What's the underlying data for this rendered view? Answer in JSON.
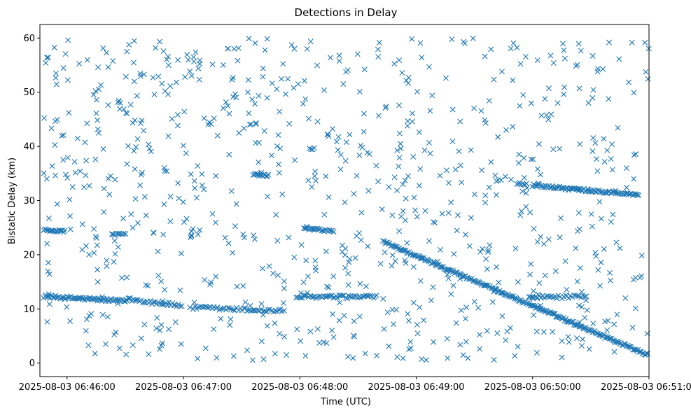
{
  "chart_data": {
    "type": "scatter",
    "title": "Detections in Delay",
    "xlabel": "Time (UTC)",
    "ylabel": "Bistatic Delay (km)",
    "marker": "x",
    "color": "#1f77b4",
    "xlim_seconds": [
      -14,
      300
    ],
    "ylim": [
      -2.5,
      62.5
    ],
    "x_ticks": [
      {
        "sec": 0,
        "label": "2025-08-03 06:46:00"
      },
      {
        "sec": 60,
        "label": "2025-08-03 06:47:00"
      },
      {
        "sec": 120,
        "label": "2025-08-03 06:48:00"
      },
      {
        "sec": 180,
        "label": "2025-08-03 06:49:00"
      },
      {
        "sec": 240,
        "label": "2025-08-03 06:50:00"
      },
      {
        "sec": 300,
        "label": "2025-08-03 06:51:00"
      }
    ],
    "y_ticks": [
      0,
      10,
      20,
      30,
      40,
      50,
      60
    ],
    "tracks": [
      {
        "t_start": -12,
        "t_end": 31,
        "d_start": 12.3,
        "d_end": 11.4,
        "step": 0.6,
        "jitter": 0.3
      },
      {
        "t_start": 31,
        "t_end": 59,
        "d_start": 11.8,
        "d_end": 10.6,
        "step": 0.8,
        "jitter": 0.35
      },
      {
        "t_start": 65,
        "t_end": 112,
        "d_start": 10.2,
        "d_end": 9.6,
        "step": 0.9,
        "jitter": 0.35
      },
      {
        "t_start": 118,
        "t_end": 160,
        "d_start": 12.2,
        "d_end": 12.2,
        "step": 0.8,
        "jitter": 0.3
      },
      {
        "t_start": 238,
        "t_end": 268,
        "d_start": 12.2,
        "d_end": 12.2,
        "step": 0.9,
        "jitter": 0.3
      },
      {
        "t_start": -12,
        "t_end": -1,
        "d_start": 24.6,
        "d_end": 24.3,
        "step": 0.6,
        "jitter": 0.2
      },
      {
        "t_start": 23,
        "t_end": 31,
        "d_start": 23.8,
        "d_end": 23.7,
        "step": 0.8,
        "jitter": 0.2
      },
      {
        "t_start": 122,
        "t_end": 138,
        "d_start": 24.9,
        "d_end": 24.3,
        "step": 0.7,
        "jitter": 0.2
      },
      {
        "t_start": 163,
        "t_end": 300,
        "d_start": 22.4,
        "d_end": 1.4,
        "step": 0.55,
        "jitter": 0.25
      },
      {
        "t_start": 240,
        "t_end": 295,
        "d_start": 32.8,
        "d_end": 31.0,
        "step": 0.6,
        "jitter": 0.25
      },
      {
        "t_start": 96,
        "t_end": 104,
        "d_start": 34.8,
        "d_end": 34.6,
        "step": 0.6,
        "jitter": 0.2
      },
      {
        "t_start": 232,
        "t_end": 237,
        "d_start": 33.2,
        "d_end": 33.0,
        "step": 0.7,
        "jitter": 0.2
      },
      {
        "t_start": 125,
        "t_end": 128,
        "d_start": 39.6,
        "d_end": 39.6,
        "step": 0.8,
        "jitter": 0.2
      }
    ],
    "noise": {
      "count": 820,
      "t_range": [
        -12,
        300
      ],
      "d_range": [
        0.5,
        60
      ],
      "seed": 12345
    }
  }
}
